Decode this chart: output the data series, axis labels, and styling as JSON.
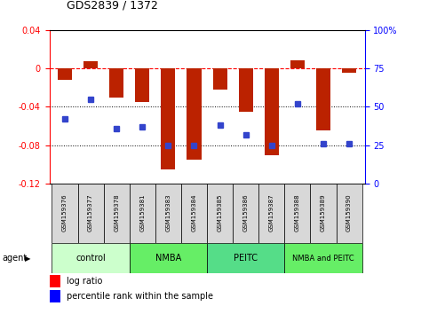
{
  "title": "GDS2839 / 1372",
  "samples": [
    "GSM159376",
    "GSM159377",
    "GSM159378",
    "GSM159381",
    "GSM159383",
    "GSM159384",
    "GSM159385",
    "GSM159386",
    "GSM159387",
    "GSM159388",
    "GSM159389",
    "GSM159390"
  ],
  "log_ratios": [
    -0.012,
    0.007,
    -0.03,
    -0.035,
    -0.105,
    -0.095,
    -0.022,
    -0.045,
    -0.09,
    0.008,
    -0.065,
    -0.005
  ],
  "percentile_ranks": [
    42,
    55,
    36,
    37,
    25,
    25,
    38,
    32,
    25,
    52,
    26,
    26
  ],
  "groups": [
    {
      "label": "control",
      "color": "#ccffcc",
      "start": 0,
      "end": 3
    },
    {
      "label": "NMBA",
      "color": "#66ee66",
      "start": 3,
      "end": 6
    },
    {
      "label": "PEITC",
      "color": "#55dd88",
      "start": 6,
      "end": 9
    },
    {
      "label": "NMBA and PEITC",
      "color": "#66ee66",
      "start": 9,
      "end": 12
    }
  ],
  "bar_color": "#bb2200",
  "dot_color": "#3344cc",
  "ylim_left": [
    -0.12,
    0.04
  ],
  "ylim_right": [
    0,
    100
  ],
  "yticks_left": [
    -0.12,
    -0.08,
    -0.04,
    0.0,
    0.04
  ],
  "yticks_right": [
    0,
    25,
    50,
    75,
    100
  ],
  "hline_y": 0.0,
  "dotted_lines": [
    -0.04,
    -0.08
  ],
  "agent_label": "agent",
  "legend_labels": [
    "log ratio",
    "percentile rank within the sample"
  ]
}
